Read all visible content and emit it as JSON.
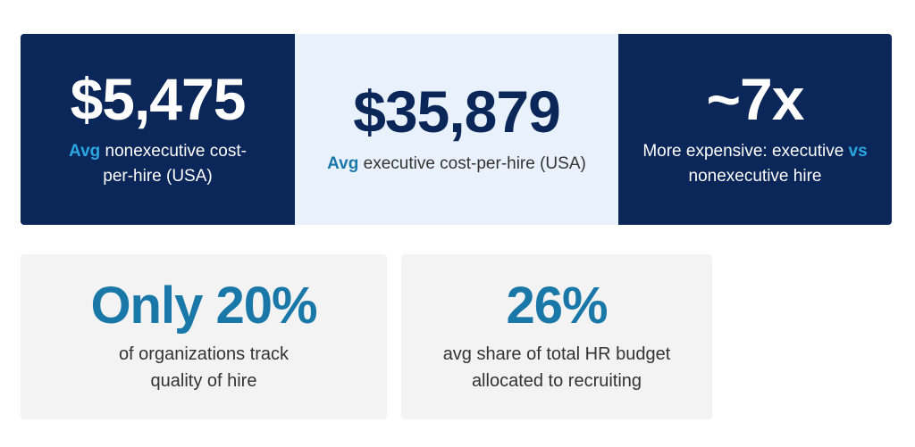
{
  "stats": [
    {
      "value": "$5,475",
      "accent": "Avg",
      "text": " nonexecutive cost-",
      "text2": "per-hire (USA)"
    },
    {
      "value": "$35,879",
      "accent": "Avg",
      "text": " executive cost-per-hire (USA)"
    },
    {
      "value": "~7x",
      "text": "More expensive: executive ",
      "accent": "vs",
      "text2": "nonexecutive hire"
    },
    {
      "value": "Only 20%",
      "text": "of organizations track",
      "text2": "quality of hire"
    },
    {
      "value": "26%",
      "text": "avg share of total HR budget",
      "text2": "allocated to recruiting"
    }
  ],
  "colors": {
    "navy": "#0b2658",
    "light": "#e9f2fc",
    "accent": "#2aa6e0",
    "teal": "#1a78a8"
  }
}
